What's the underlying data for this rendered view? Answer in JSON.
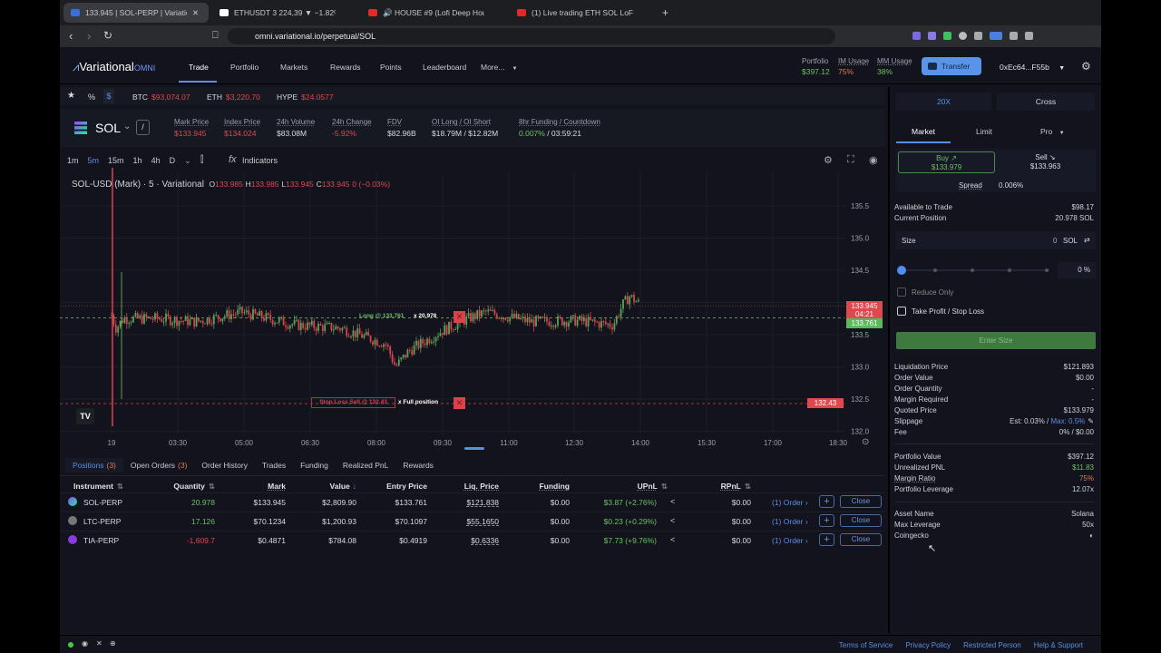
{
  "browser": {
    "tabs": [
      {
        "title": "133.945 | SOL-PERP | Variational",
        "active": true,
        "color": "#3b6fd6"
      },
      {
        "title": "ETHUSDT 3 224,39 ▼ −1.82% Без",
        "active": false,
        "color": "#ffffff"
      },
      {
        "title": "🔊 HOUSE #9 (Lofi Deep House) -",
        "active": false,
        "color": "#e02a2a"
      },
      {
        "title": "(1) Live trading ETH SOL LoFil No",
        "active": false,
        "color": "#e02a2a"
      }
    ],
    "new_tab": "+",
    "url": "omni.variational.io/perpetual/SOL"
  },
  "nav": {
    "logo": "Variational",
    "logo_suffix": "OMNI",
    "items": [
      "Trade",
      "Portfolio",
      "Markets",
      "Rewards",
      "Points",
      "Leaderboard",
      "More..."
    ],
    "active": "Trade",
    "portfolio_label": "Portfolio",
    "portfolio_value": "$397.12",
    "im_label": "IM Usage",
    "im_value": "75%",
    "mm_label": "MM Usage",
    "mm_value": "38%",
    "transfer": "Transfer",
    "wallet": "0xEc64...F55b"
  },
  "ticker": {
    "star": "★",
    "pct": "%",
    "dollar": "$",
    "items": [
      {
        "sym": "BTC",
        "price": "$93,074.07"
      },
      {
        "sym": "ETH",
        "price": "$3,220.70"
      },
      {
        "sym": "HYPE",
        "price": "$24.0577"
      }
    ]
  },
  "market": {
    "symbol": "SOL",
    "stats": [
      {
        "label": "Mark Price",
        "value": "$133.945",
        "color": "red"
      },
      {
        "label": "Index Price",
        "value": "$134.024",
        "color": "red"
      },
      {
        "label": "24h Volume",
        "value": "$83.08M",
        "color": ""
      },
      {
        "label": "24h Change",
        "value": "-5.92%",
        "color": "red"
      },
      {
        "label": "FDV",
        "value": "$82.96B",
        "color": ""
      },
      {
        "label": "OI Long / OI Short",
        "value": "$18.79M  /  $12.82M",
        "color": ""
      },
      {
        "label": "8hr Funding / Countdown",
        "value": "0.007%",
        "value2": " /  03:59:21",
        "color": "green"
      }
    ]
  },
  "chart": {
    "intervals": [
      "1m",
      "5m",
      "15m",
      "1h",
      "4h",
      "D"
    ],
    "active_interval": "5m",
    "indicators": "Indicators",
    "legend": {
      "title": "SOL-USD (Mark) · 5 · Variational",
      "o": "133.985",
      "h": "133.985",
      "l": "133.945",
      "c": "133.945",
      "chg": "0 (−0.03%)"
    },
    "y_ticks": [
      "135.5",
      "135.0",
      "134.5",
      "133.5",
      "133.0",
      "132.5",
      "132.0"
    ],
    "x_ticks": [
      "19",
      "03:30",
      "05:00",
      "06:30",
      "08:00",
      "09:30",
      "11:00",
      "12:30",
      "14:00",
      "15:30",
      "17:00",
      "18:30"
    ],
    "last_price": "133.945",
    "countdown": "04:21",
    "entry_price": "133.761",
    "stop_price": "132.43",
    "long_label": "Long @ 133.761",
    "long_qty": "x 20.978",
    "stop_label": "Stop Loss Sell @ 132.43",
    "stop_qty": "x Full position",
    "colors": {
      "up": "#5aa05a",
      "down": "#d9434b"
    }
  },
  "bottom": {
    "tabs": [
      {
        "label": "Positions",
        "count": "(3)"
      },
      {
        "label": "Open Orders",
        "count": "(3)"
      },
      {
        "label": "Order History"
      },
      {
        "label": "Trades"
      },
      {
        "label": "Funding"
      },
      {
        "label": "Realized PnL"
      },
      {
        "label": "Rewards"
      }
    ],
    "columns": [
      "Instrument",
      "Quantity",
      "Mark",
      "Value",
      "Entry Price",
      "Liq. Price",
      "Funding",
      "UPnL",
      "RPnL"
    ],
    "rows": [
      {
        "inst": "SOL-PERP",
        "qty": "20.978",
        "mark": "$133.945",
        "value": "$2,809.90",
        "entry": "$133.761",
        "liq": "$121.838",
        "funding": "$0.00",
        "upnl": "$3.87 (+2.76%)",
        "rpnl": "$0.00",
        "order": "(1) Order ›",
        "close": "Close",
        "neg": false
      },
      {
        "inst": "LTC-PERP",
        "qty": "17.126",
        "mark": "$70.1234",
        "value": "$1,200.93",
        "entry": "$70.1097",
        "liq": "$55.1650",
        "funding": "$0.00",
        "upnl": "$0.23 (+0.29%)",
        "rpnl": "$0.00",
        "order": "(1) Order ›",
        "close": "Close",
        "neg": false
      },
      {
        "inst": "TIA-PERP",
        "qty": "-1,609.7",
        "mark": "$0.4871",
        "value": "$784.08",
        "entry": "$0.4919",
        "liq": "$0.6336",
        "funding": "$0.00",
        "upnl": "$7.73 (+9.76%)",
        "rpnl": "$0.00",
        "order": "(1) Order ›",
        "close": "Close",
        "neg": true
      }
    ]
  },
  "order": {
    "leverage": "20X",
    "margin_mode": "Cross",
    "types": [
      "Market",
      "Limit",
      "Pro"
    ],
    "buy_label": "Buy",
    "buy_price": "$133.979",
    "sell_label": "Sell",
    "sell_price": "$133.963",
    "spread_label": "Spread",
    "spread": "0.006%",
    "avail_label": "Available to Trade",
    "avail": "$98.17",
    "pos_label": "Current Position",
    "pos": "20.978 SOL",
    "size_label": "Size",
    "size_value": "0",
    "size_unit": "SOL",
    "slider_pct": "0",
    "pct_sign": "%",
    "reduce_only": "Reduce Only",
    "tpsl": "Take Profit / Stop Loss",
    "submit": "Enter Size",
    "details": [
      [
        "Liquidation Price",
        "$121.893"
      ],
      [
        "Order Value",
        "$0.00"
      ],
      [
        "Order Quantity",
        "-"
      ],
      [
        "Margin Required",
        "-"
      ],
      [
        "Quoted Price",
        "$133.979"
      ]
    ],
    "slippage_label": "Slippage",
    "slippage_est": "Est: 0.03% / ",
    "slippage_max": "Max: 0.5%",
    "fee_label": "Fee",
    "fee": "0% / $0.00",
    "account": [
      [
        "Portfolio Value",
        "$397.12",
        ""
      ],
      [
        "Unrealized PNL",
        "$11.83",
        "green"
      ],
      [
        "Margin Ratio",
        "75%",
        "orange"
      ],
      [
        "Portfolio Leverage",
        "12.07x",
        ""
      ]
    ],
    "asset": [
      [
        "Asset Name",
        "Solana"
      ],
      [
        "Max Leverage",
        "50x"
      ],
      [
        "Coingecko",
        ""
      ]
    ]
  },
  "footer": {
    "links": [
      "Terms of Service",
      "Privacy Policy",
      "Restricted Person",
      "Help & Support"
    ]
  }
}
